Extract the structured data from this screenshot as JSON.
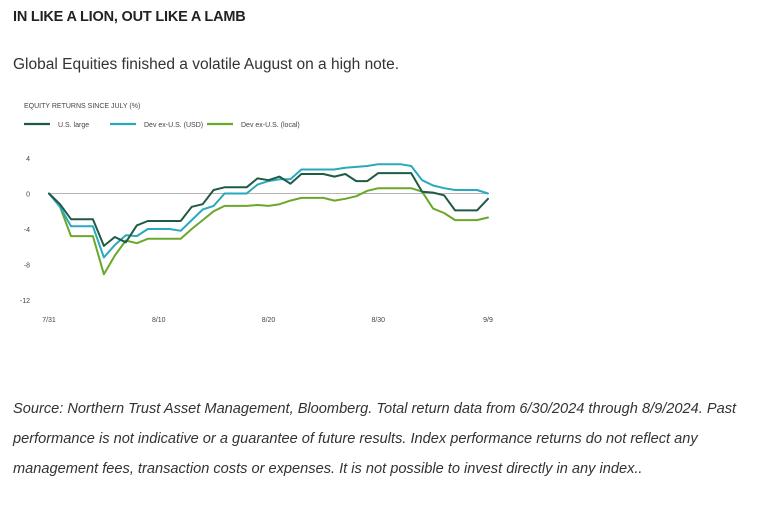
{
  "header": {
    "headline": "IN LIKE A LION, OUT LIKE A LAMB",
    "subhead": "Global Equities finished a volatile August on a high note."
  },
  "footer": {
    "source": "Source: Northern Trust Asset Management, Bloomberg. Total return data from 6/30/2024 through 8/9/2024. Past performance is not indicative or a guarantee of future results. Index performance returns do not reflect any management fees, transaction costs or expenses. It is not possible to invest directly in any index.."
  },
  "chart_data": {
    "type": "line",
    "title": "EQUITY RETURNS SINCE JULY (%)",
    "xlabel": "",
    "ylabel": "",
    "x": [
      "7/31",
      "8/1",
      "8/2",
      "8/3",
      "8/4",
      "8/5",
      "8/6",
      "8/7",
      "8/8",
      "8/9",
      "8/10",
      "8/11",
      "8/12",
      "8/13",
      "8/14",
      "8/15",
      "8/16",
      "8/17",
      "8/18",
      "8/19",
      "8/20",
      "8/21",
      "8/22",
      "8/23",
      "8/24",
      "8/25",
      "8/26",
      "8/27",
      "8/28",
      "8/29",
      "8/30",
      "8/31",
      "9/1",
      "9/2",
      "9/3",
      "9/4",
      "9/5",
      "9/6",
      "9/7",
      "9/8",
      "9/9"
    ],
    "x_ticks": [
      "7/31",
      "8/10",
      "8/20",
      "8/30",
      "9/9"
    ],
    "y_ticks": [
      4,
      0,
      -4,
      -8,
      -12
    ],
    "ylim": [
      -12,
      4
    ],
    "zero_line": true,
    "legend": "top-left",
    "colors": {
      "us_large": "#1f5a45",
      "dev_usd": "#29a9bc",
      "dev_local": "#6aa82b",
      "zero": "#b5b5b5",
      "axis_text": "#444444"
    },
    "series": [
      {
        "name": "U.S. large",
        "color": "#1f5a45",
        "values": [
          0,
          -1.2,
          -2.9,
          -2.9,
          -2.9,
          -5.9,
          -4.9,
          -5.5,
          -3.6,
          -3.1,
          -3.1,
          -3.1,
          -3.1,
          -1.5,
          -1.2,
          0.4,
          0.7,
          0.7,
          0.7,
          1.7,
          1.5,
          1.9,
          1.1,
          2.2,
          2.2,
          2.2,
          1.9,
          2.2,
          1.4,
          1.4,
          2.3,
          2.3,
          2.3,
          2.3,
          0.2,
          0.1,
          -0.2,
          -1.9,
          -1.9,
          -1.9,
          -0.6
        ]
      },
      {
        "name": "Dev ex-U.S. (USD)",
        "color": "#29a9bc",
        "values": [
          0,
          -1.5,
          -3.7,
          -3.7,
          -3.7,
          -7.2,
          -5.8,
          -4.7,
          -4.8,
          -4.0,
          -4.0,
          -4.0,
          -4.2,
          -3.0,
          -1.8,
          -1.4,
          0,
          0,
          0,
          1.0,
          1.4,
          1.6,
          1.6,
          2.7,
          2.7,
          2.7,
          2.7,
          2.9,
          3.0,
          3.1,
          3.3,
          3.3,
          3.3,
          3.1,
          1.5,
          0.9,
          0.6,
          0.4,
          0.4,
          0.4,
          0
        ]
      },
      {
        "name": "Dev ex-U.S. (local)",
        "color": "#6aa82b",
        "values": [
          0,
          -1.5,
          -4.8,
          -4.8,
          -4.8,
          -9.1,
          -7.0,
          -5.3,
          -5.6,
          -5.1,
          -5.1,
          -5.1,
          -5.1,
          -4.0,
          -3.0,
          -2.0,
          -1.4,
          -1.4,
          -1.4,
          -1.3,
          -1.4,
          -1.2,
          -0.8,
          -0.5,
          -0.5,
          -0.5,
          -0.8,
          -0.6,
          -0.3,
          0.3,
          0.6,
          0.6,
          0.6,
          0.6,
          0.2,
          -1.7,
          -2.2,
          -3.0,
          -3.0,
          -3.0,
          -2.7
        ]
      }
    ]
  }
}
